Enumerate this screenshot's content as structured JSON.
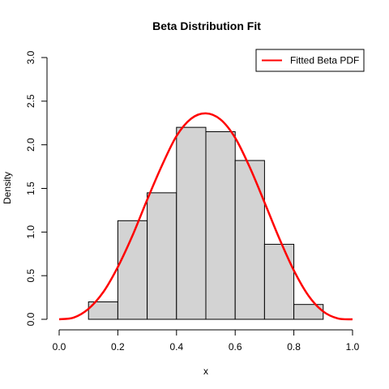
{
  "chart_data": {
    "type": "histogram_with_line",
    "title": "Beta Distribution Fit",
    "xlabel": "x",
    "ylabel": "Density",
    "xlim": [
      0.0,
      1.0
    ],
    "ylim": [
      0.0,
      3.0
    ],
    "x_ticks": [
      "0.0",
      "0.2",
      "0.4",
      "0.6",
      "0.8",
      "1.0"
    ],
    "y_ticks": [
      "0.0",
      "0.5",
      "1.0",
      "1.5",
      "2.0",
      "2.5",
      "3.0"
    ],
    "grid": false,
    "legend_position": "top-right",
    "histogram": {
      "bin_edges": [
        0.1,
        0.2,
        0.3,
        0.4,
        0.5,
        0.6,
        0.7,
        0.8,
        0.9
      ],
      "densities": [
        0.2,
        1.13,
        1.45,
        2.2,
        2.15,
        1.82,
        0.86,
        0.17
      ],
      "fill_color": "#d3d3d3",
      "edge_color": "#000000"
    },
    "series": [
      {
        "name": "Fitted Beta PDF",
        "color": "#ff0000",
        "x": [
          0.0,
          0.05,
          0.1,
          0.15,
          0.2,
          0.25,
          0.3,
          0.35,
          0.4,
          0.45,
          0.5,
          0.55,
          0.6,
          0.65,
          0.7,
          0.75,
          0.8,
          0.85,
          0.9,
          0.95,
          1.0
        ],
        "y": [
          0.0,
          0.02,
          0.12,
          0.31,
          0.6,
          0.96,
          1.37,
          1.76,
          2.1,
          2.3,
          2.36,
          2.29,
          2.08,
          1.74,
          1.34,
          0.93,
          0.56,
          0.27,
          0.09,
          0.01,
          0.0
        ]
      }
    ]
  }
}
